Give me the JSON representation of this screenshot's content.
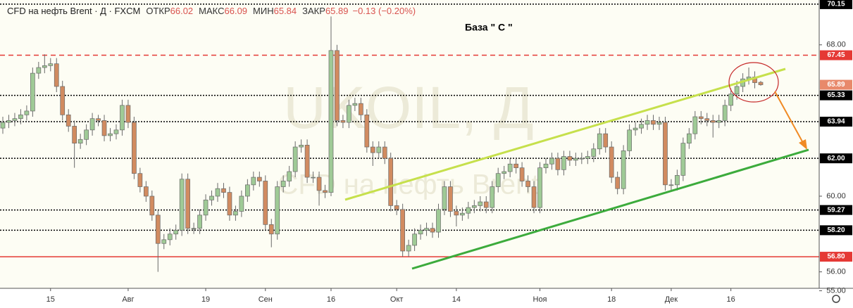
{
  "header": {
    "title": "CFD на нефть Brent · Д · FXCM",
    "ohlc": [
      {
        "label": "ОТКР",
        "value": 66.02
      },
      {
        "label": "МАКС",
        "value": 66.09
      },
      {
        "label": "МИН",
        "value": 65.84
      },
      {
        "label": "ЗАКР",
        "value": 65.89
      }
    ],
    "change": "−0.13 (−0.20%)"
  },
  "annotation": "База  \" С \"",
  "watermark": [
    "UKOIL, Д",
    "CFD на нефть Brent"
  ],
  "chart_data": {
    "type": "candlestick",
    "up_color": "#9fca96",
    "down_color": "#d18b60",
    "ylim": [
      55.13,
      70.37
    ],
    "yticks": [
      {
        "value": 68,
        "label": "68.00"
      },
      {
        "value": 60,
        "label": "60.00"
      },
      {
        "value": 56,
        "label": "56.00"
      },
      {
        "value": 55,
        "label": "55.00"
      }
    ],
    "levels": [
      {
        "value": 70.15,
        "label": "70.15",
        "line": "dotted",
        "color": "#000000"
      },
      {
        "value": 67.45,
        "label": "67.45",
        "line": "dashed",
        "color": "#e53935"
      },
      {
        "value": 65.89,
        "label": "65.89",
        "line": "none",
        "color": "#e8896b"
      },
      {
        "value": 65.33,
        "label": "65.33",
        "line": "dotted",
        "color": "#000000"
      },
      {
        "value": 63.94,
        "label": "63.94",
        "line": "dotted",
        "color": "#000000"
      },
      {
        "value": 62,
        "label": "62.00",
        "line": "dotted",
        "color": "#000000"
      },
      {
        "value": 59.27,
        "label": "59.27",
        "line": "dotted",
        "color": "#000000"
      },
      {
        "value": 58.2,
        "label": "58.20",
        "line": "dotted",
        "color": "#000000"
      },
      {
        "value": 56.8,
        "label": "56.80",
        "line": "solid",
        "color": "#e53935"
      }
    ],
    "categories": [
      null,
      null,
      null,
      null,
      null,
      null,
      null,
      null,
      "15",
      null,
      null,
      null,
      null,
      null,
      null,
      null,
      null,
      null,
      null,
      null,
      null,
      "Авг",
      null,
      null,
      null,
      null,
      null,
      null,
      null,
      null,
      null,
      null,
      null,
      null,
      "19",
      null,
      null,
      null,
      null,
      null,
      null,
      null,
      null,
      null,
      "Сен",
      null,
      null,
      null,
      null,
      null,
      null,
      null,
      null,
      null,
      null,
      "16",
      null,
      null,
      null,
      null,
      null,
      null,
      null,
      null,
      null,
      null,
      "Окт",
      null,
      null,
      null,
      null,
      null,
      null,
      null,
      null,
      null,
      "14",
      null,
      null,
      null,
      null,
      null,
      null,
      null,
      null,
      null,
      null,
      null,
      null,
      null,
      "Ноя",
      null,
      null,
      null,
      null,
      null,
      null,
      null,
      null,
      null,
      null,
      null,
      "18",
      null,
      null,
      null,
      null,
      null,
      null,
      null,
      null,
      null,
      "Дек",
      null,
      null,
      null,
      null,
      null,
      null,
      null,
      null,
      null,
      "16",
      null,
      null,
      null,
      null,
      null
    ],
    "values": [
      [
        63.6,
        64.2,
        63.3,
        63.9
      ],
      [
        63.9,
        64.3,
        63.6,
        64.0
      ],
      [
        64.0,
        64.4,
        63.7,
        64.1
      ],
      [
        64.1,
        64.6,
        63.8,
        64.3
      ],
      [
        64.3,
        64.8,
        64.0,
        64.5
      ],
      [
        64.5,
        66.8,
        64.2,
        66.5
      ],
      [
        66.5,
        67.1,
        66.2,
        66.8
      ],
      [
        66.8,
        67.5,
        66.5,
        66.9
      ],
      [
        66.9,
        67.3,
        66.6,
        67.0
      ],
      [
        67.0,
        67.3,
        65.5,
        65.8
      ],
      [
        65.8,
        66.1,
        64.0,
        64.3
      ],
      [
        64.3,
        64.6,
        63.4,
        63.7
      ],
      [
        63.7,
        64.0,
        61.5,
        62.8
      ],
      [
        62.8,
        63.3,
        62.5,
        63.0
      ],
      [
        63.0,
        63.8,
        62.7,
        63.5
      ],
      [
        63.5,
        64.4,
        63.2,
        64.1
      ],
      [
        64.1,
        64.3,
        63.7,
        64.0
      ],
      [
        64.0,
        64.3,
        62.9,
        63.2
      ],
      [
        63.2,
        63.6,
        62.9,
        63.3
      ],
      [
        63.3,
        63.8,
        63.0,
        63.5
      ],
      [
        63.5,
        65.1,
        63.2,
        64.8
      ],
      [
        64.8,
        65.1,
        63.6,
        63.9
      ],
      [
        63.9,
        64.2,
        60.9,
        61.2
      ],
      [
        61.2,
        61.5,
        60.2,
        60.5
      ],
      [
        60.5,
        60.8,
        59.7,
        60.0
      ],
      [
        60.0,
        60.3,
        58.7,
        59.0
      ],
      [
        59.0,
        59.3,
        56.0,
        57.5
      ],
      [
        57.5,
        58.0,
        57.2,
        57.7
      ],
      [
        57.7,
        58.3,
        57.4,
        58.0
      ],
      [
        58.0,
        58.5,
        57.7,
        58.2
      ],
      [
        58.2,
        61.2,
        57.9,
        60.9
      ],
      [
        60.9,
        61.2,
        58.0,
        58.3
      ],
      [
        58.3,
        58.6,
        58.0,
        58.3
      ],
      [
        58.3,
        59.3,
        58.0,
        59.0
      ],
      [
        59.0,
        60.1,
        58.7,
        59.8
      ],
      [
        59.8,
        60.3,
        59.5,
        60.0
      ],
      [
        60.0,
        60.7,
        59.7,
        60.4
      ],
      [
        60.4,
        60.7,
        59.9,
        60.2
      ],
      [
        60.2,
        60.5,
        58.7,
        59.0
      ],
      [
        59.0,
        59.5,
        58.7,
        59.2
      ],
      [
        59.2,
        60.3,
        58.9,
        60.0
      ],
      [
        60.0,
        60.9,
        59.7,
        60.6
      ],
      [
        60.6,
        61.3,
        60.3,
        61.0
      ],
      [
        61.0,
        61.3,
        60.5,
        60.8
      ],
      [
        60.8,
        61.1,
        58.2,
        58.5
      ],
      [
        58.5,
        58.8,
        57.3,
        58.0
      ],
      [
        58.0,
        60.8,
        57.7,
        60.5
      ],
      [
        60.5,
        61.1,
        60.2,
        60.8
      ],
      [
        60.8,
        61.6,
        60.5,
        61.3
      ],
      [
        61.3,
        62.9,
        61.0,
        62.6
      ],
      [
        62.6,
        63.0,
        62.3,
        62.7
      ],
      [
        62.7,
        63.0,
        60.7,
        61.0
      ],
      [
        61.0,
        61.3,
        60.7,
        61.0
      ],
      [
        61.0,
        61.3,
        59.5,
        60.3
      ],
      [
        60.3,
        60.6,
        59.9,
        60.2
      ],
      [
        60.2,
        69.5,
        60.0,
        67.7
      ],
      [
        67.7,
        68.0,
        63.7,
        64.0
      ],
      [
        64.0,
        64.3,
        63.6,
        63.9
      ],
      [
        63.9,
        65.1,
        63.6,
        64.8
      ],
      [
        64.8,
        65.2,
        64.5,
        64.9
      ],
      [
        64.9,
        65.2,
        64.0,
        64.3
      ],
      [
        64.3,
        64.6,
        62.3,
        62.6
      ],
      [
        62.6,
        62.9,
        61.6,
        62.3
      ],
      [
        62.3,
        62.9,
        62.0,
        62.6
      ],
      [
        62.6,
        62.9,
        61.7,
        62.0
      ],
      [
        62.0,
        62.3,
        59.2,
        59.5
      ],
      [
        59.5,
        59.8,
        59.0,
        59.3
      ],
      [
        59.3,
        59.6,
        56.8,
        57.1
      ],
      [
        57.1,
        57.7,
        56.8,
        57.4
      ],
      [
        57.4,
        58.3,
        57.1,
        58.0
      ],
      [
        58.0,
        58.5,
        57.7,
        58.2
      ],
      [
        58.2,
        58.6,
        57.9,
        58.3
      ],
      [
        58.3,
        58.6,
        57.8,
        58.1
      ],
      [
        58.1,
        59.6,
        57.8,
        59.3
      ],
      [
        59.3,
        60.8,
        59.0,
        60.5
      ],
      [
        60.5,
        60.8,
        58.9,
        59.2
      ],
      [
        59.2,
        59.5,
        58.4,
        59.0
      ],
      [
        59.0,
        59.4,
        58.7,
        59.1
      ],
      [
        59.1,
        59.7,
        58.8,
        59.4
      ],
      [
        59.4,
        59.8,
        59.1,
        59.5
      ],
      [
        59.5,
        60.0,
        59.2,
        59.7
      ],
      [
        59.7,
        60.0,
        59.1,
        59.4
      ],
      [
        59.4,
        60.8,
        59.1,
        60.5
      ],
      [
        60.5,
        61.5,
        60.2,
        61.2
      ],
      [
        61.2,
        61.6,
        60.9,
        61.3
      ],
      [
        61.3,
        62.0,
        61.0,
        61.7
      ],
      [
        61.7,
        62.0,
        61.2,
        61.5
      ],
      [
        61.5,
        61.8,
        60.5,
        60.8
      ],
      [
        60.8,
        61.1,
        60.2,
        60.5
      ],
      [
        60.5,
        60.8,
        59.1,
        59.4
      ],
      [
        59.4,
        61.8,
        59.1,
        61.5
      ],
      [
        61.5,
        62.0,
        61.2,
        61.7
      ],
      [
        61.7,
        62.3,
        61.4,
        62.0
      ],
      [
        62.0,
        62.3,
        61.1,
        61.4
      ],
      [
        61.4,
        62.4,
        61.1,
        62.1
      ],
      [
        62.1,
        62.4,
        61.6,
        61.9
      ],
      [
        61.9,
        62.3,
        61.6,
        62.0
      ],
      [
        62.0,
        62.3,
        61.7,
        62.0
      ],
      [
        62.0,
        62.4,
        61.7,
        62.1
      ],
      [
        62.1,
        62.8,
        61.8,
        62.5
      ],
      [
        62.5,
        63.6,
        62.2,
        63.3
      ],
      [
        63.3,
        63.6,
        62.3,
        62.6
      ],
      [
        62.6,
        62.9,
        60.7,
        61.0
      ],
      [
        61.0,
        61.3,
        60.1,
        60.4
      ],
      [
        60.4,
        62.7,
        60.1,
        62.4
      ],
      [
        62.4,
        63.8,
        62.1,
        63.5
      ],
      [
        63.5,
        63.9,
        63.2,
        63.6
      ],
      [
        63.6,
        64.1,
        63.3,
        63.8
      ],
      [
        63.8,
        64.3,
        63.5,
        64.0
      ],
      [
        64.0,
        64.3,
        63.5,
        63.8
      ],
      [
        63.8,
        64.2,
        63.5,
        63.9
      ],
      [
        63.9,
        64.2,
        60.3,
        60.6
      ],
      [
        60.6,
        60.9,
        60.3,
        60.6
      ],
      [
        60.6,
        61.4,
        60.3,
        61.1
      ],
      [
        61.1,
        63.1,
        60.8,
        62.8
      ],
      [
        62.8,
        63.6,
        62.5,
        63.3
      ],
      [
        63.3,
        64.5,
        63.0,
        64.2
      ],
      [
        64.2,
        64.5,
        63.8,
        64.1
      ],
      [
        64.1,
        64.4,
        63.7,
        64.0
      ],
      [
        64.0,
        64.3,
        63.1,
        63.9
      ],
      [
        63.9,
        64.3,
        63.6,
        64.0
      ],
      [
        64.0,
        65.1,
        63.7,
        64.8
      ],
      [
        64.8,
        65.7,
        64.5,
        65.4
      ],
      [
        65.4,
        66.1,
        65.1,
        65.8
      ],
      [
        65.8,
        66.5,
        65.5,
        66.2
      ],
      [
        66.2,
        66.8,
        65.9,
        66.3
      ],
      [
        66.3,
        66.6,
        65.7,
        66.0
      ],
      [
        66.02,
        66.09,
        65.84,
        65.89
      ]
    ]
  }
}
